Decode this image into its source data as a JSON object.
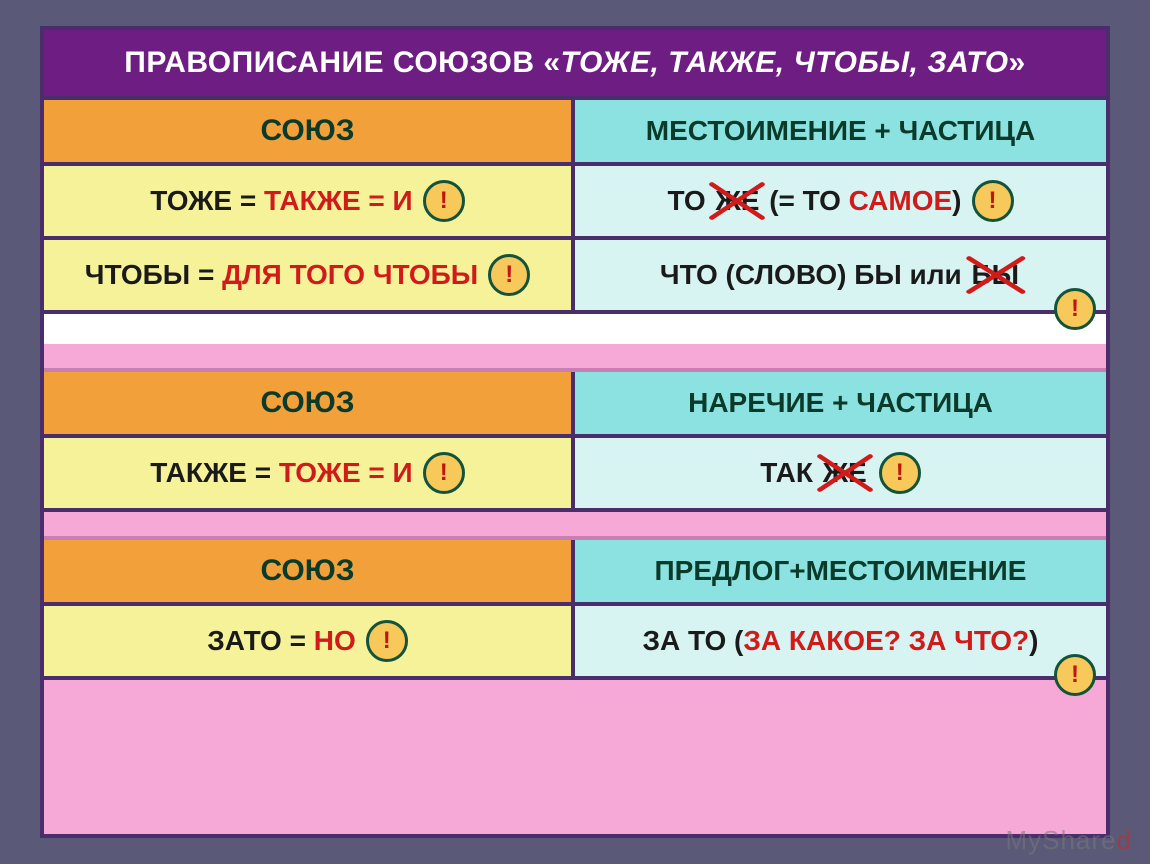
{
  "colors": {
    "page_bg": "#5a5a78",
    "frame_bg": "#f6a9d6",
    "frame_border": "#4a2d6b",
    "title_bg": "#6e1d82",
    "title_fg": "#ffffff",
    "hdr_left_bg": "#f2a03a",
    "hdr_right_bg": "#8be2e0",
    "hdr_fg": "#0a3a2a",
    "body_left_bg": "#f5f29a",
    "body_right_bg": "#d8f4f2",
    "accent_red": "#d11a1a",
    "text": "#1a1a1a",
    "badge_bg": "#f7c85a",
    "badge_border": "#13533b",
    "badge_fg": "#c01515",
    "spacer_bg": "#ffffff"
  },
  "title": {
    "prefix": "ПРАВОПИСАНИЕ СОЮЗОВ «",
    "italic": "ТОЖЕ, ТАКЖЕ, ЧТОБЫ, ЗАТО",
    "suffix": "»"
  },
  "badge_char": "!",
  "watermark": {
    "a": "MyShared",
    "accent_index": 7
  },
  "sections": [
    {
      "header": {
        "left": "СОЮЗ",
        "right": "МЕСТОИМЕНИЕ + ЧАСТИЦА"
      },
      "rows": [
        {
          "left": {
            "runs": [
              {
                "t": "ТОЖЕ  = ",
                "c": "blk"
              },
              {
                "t": "ТАКЖЕ  = И",
                "c": "red"
              }
            ],
            "badge": true
          },
          "right": {
            "runs": [
              {
                "t": "ТО   ",
                "c": "blk"
              },
              {
                "t": "ЖЕ",
                "c": "blk",
                "strike": true
              },
              {
                "t": " (= ТО ",
                "c": "blk"
              },
              {
                "t": "САМОЕ",
                "c": "red"
              },
              {
                "t": ")",
                "c": "blk"
              }
            ],
            "badge": true
          }
        },
        {
          "left": {
            "runs": [
              {
                "t": "ЧТОБЫ = ",
                "c": "blk"
              },
              {
                "t": "ДЛЯ ТОГО ЧТОБЫ",
                "c": "red"
              }
            ],
            "badge": true
          },
          "right": {
            "runs": [
              {
                "t": "ЧТО  (СЛОВО)  БЫ или ",
                "c": "blk"
              },
              {
                "t": "БЫ",
                "c": "blk",
                "strike": true
              }
            ],
            "badge": "below"
          }
        }
      ]
    },
    {
      "header": {
        "left": "СОЮЗ",
        "right": "НАРЕЧИЕ + ЧАСТИЦА"
      },
      "rows": [
        {
          "left": {
            "runs": [
              {
                "t": "ТАКЖЕ = ",
                "c": "blk"
              },
              {
                "t": "ТОЖЕ  = И",
                "c": "red"
              }
            ],
            "badge": true
          },
          "right": {
            "runs": [
              {
                "t": "ТАК  ",
                "c": "blk"
              },
              {
                "t": "ЖЕ",
                "c": "blk",
                "strike": true
              }
            ],
            "badge": true
          }
        }
      ]
    },
    {
      "header": {
        "left": "СОЮЗ",
        "right": "ПРЕДЛОГ+МЕСТОИМЕНИЕ"
      },
      "rows": [
        {
          "left": {
            "runs": [
              {
                "t": "ЗАТО = ",
                "c": "blk"
              },
              {
                "t": "НО",
                "c": "red"
              }
            ],
            "badge": true
          },
          "right": {
            "runs": [
              {
                "t": "ЗА ТО  (",
                "c": "blk"
              },
              {
                "t": "ЗА КАКОЕ? ЗА ЧТО?",
                "c": "red"
              },
              {
                "t": ")",
                "c": "blk"
              }
            ],
            "badge": "below"
          }
        }
      ]
    }
  ]
}
